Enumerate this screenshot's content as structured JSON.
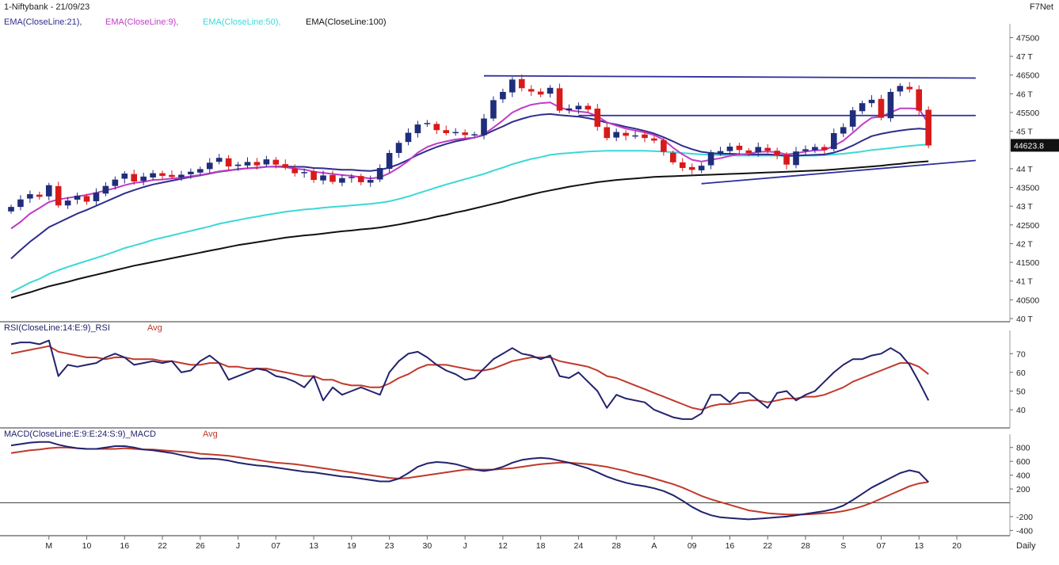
{
  "header": {
    "title": "1-Niftybank - 21/09/23",
    "vendor": "F7Net"
  },
  "colors": {
    "ema21": "#2e2e8c",
    "ema9": "#c03cc8",
    "ema50": "#3cd8d8",
    "ema100": "#111111",
    "rsi_line": "#22226e",
    "rsi_avg": "#c0392b",
    "macd_line": "#22226e",
    "macd_avg": "#c0392b",
    "candle_up": "#1f2d7a",
    "candle_down": "#d81a1a",
    "trendline": "#2b2f9a"
  },
  "chart_data": [
    {
      "type": "candlestick",
      "panel": "price",
      "legend": [
        {
          "label": "EMA(CloseLine:21),",
          "color_key": "ema21"
        },
        {
          "label": "EMA(CloseLine:9),",
          "color_key": "ema9"
        },
        {
          "label": "EMA(CloseLine:50),",
          "color_key": "ema50"
        },
        {
          "label": "EMA(CloseLine:100)",
          "color_key": "ema100"
        }
      ],
      "ylim": [
        40000,
        47700
      ],
      "y_ticks": [
        {
          "value": 47500,
          "label": "47500"
        },
        {
          "value": 47000,
          "label": "47 T"
        },
        {
          "value": 46500,
          "label": "46500"
        },
        {
          "value": 46000,
          "label": "46 T"
        },
        {
          "value": 45500,
          "label": "45500"
        },
        {
          "value": 45000,
          "label": "45 T"
        },
        {
          "value": 44000,
          "label": "44 T"
        },
        {
          "value": 43500,
          "label": "43500"
        },
        {
          "value": 43000,
          "label": "43 T"
        },
        {
          "value": 42500,
          "label": "42500"
        },
        {
          "value": 42000,
          "label": "42 T"
        },
        {
          "value": 41500,
          "label": "41500"
        },
        {
          "value": 41000,
          "label": "41 T"
        },
        {
          "value": 40500,
          "label": "40500"
        },
        {
          "value": 40000,
          "label": "40 T"
        }
      ],
      "last_price_label": "44623.8",
      "last_price": 44623.8,
      "close": [
        42980,
        43180,
        43320,
        43250,
        43560,
        43020,
        43150,
        43280,
        43120,
        43360,
        43540,
        43710,
        43870,
        43660,
        43790,
        43880,
        43810,
        43780,
        43840,
        43920,
        43990,
        44160,
        44290,
        44060,
        44110,
        44180,
        44090,
        44250,
        44110,
        44030,
        43880,
        43910,
        43700,
        43820,
        43650,
        43750,
        43780,
        43640,
        43700,
        44020,
        44420,
        44690,
        44960,
        45180,
        45220,
        45030,
        44950,
        44980,
        44900,
        44920,
        45340,
        45830,
        46050,
        46380,
        46150,
        46060,
        45980,
        46160,
        45550,
        45610,
        45680,
        45580,
        45120,
        44820,
        44980,
        44880,
        44890,
        44820,
        44750,
        44450,
        44170,
        44020,
        43970,
        44080,
        44440,
        44470,
        44590,
        44500,
        44420,
        44580,
        44480,
        44350,
        44110,
        44460,
        44520,
        44580,
        44500,
        44950,
        45110,
        45560,
        45750,
        45840,
        45360,
        46050,
        46210,
        46120,
        45550,
        44620
      ],
      "ema9": [
        42400,
        42580,
        42800,
        42950,
        43110,
        43180,
        43220,
        43260,
        43300,
        43360,
        43420,
        43480,
        43560,
        43620,
        43650,
        43700,
        43710,
        43740,
        43760,
        43800,
        43830,
        43880,
        43930,
        43960,
        43980,
        44010,
        44020,
        44050,
        44050,
        44040,
        44000,
        43980,
        43920,
        43890,
        43860,
        43830,
        43810,
        43770,
        43740,
        43770,
        43880,
        44030,
        44210,
        44430,
        44580,
        44670,
        44730,
        44780,
        44810,
        44830,
        44920,
        45100,
        45290,
        45500,
        45620,
        45710,
        45750,
        45770,
        45640,
        45560,
        45530,
        45500,
        45400,
        45240,
        45150,
        45070,
        45020,
        44970,
        44900,
        44770,
        44560,
        44380,
        44240,
        44190,
        44240,
        44280,
        44340,
        44380,
        44400,
        44450,
        44460,
        44440,
        44380,
        44410,
        44460,
        44490,
        44500,
        44610,
        44750,
        44960,
        45180,
        45360,
        45390,
        45500,
        45610,
        45610,
        45600,
        45200
      ],
      "ema21": [
        41600,
        41830,
        42050,
        42240,
        42440,
        42560,
        42680,
        42800,
        42900,
        43010,
        43120,
        43230,
        43340,
        43430,
        43510,
        43580,
        43630,
        43680,
        43730,
        43780,
        43820,
        43870,
        43920,
        43950,
        43990,
        44010,
        44030,
        44050,
        44060,
        44060,
        44050,
        44050,
        44020,
        44010,
        43990,
        43970,
        43970,
        43950,
        43940,
        43970,
        44030,
        44120,
        44240,
        44370,
        44480,
        44580,
        44660,
        44730,
        44780,
        44830,
        44900,
        45020,
        45130,
        45250,
        45330,
        45400,
        45440,
        45460,
        45430,
        45410,
        45390,
        45350,
        45300,
        45230,
        45180,
        45120,
        45070,
        45010,
        44940,
        44840,
        44730,
        44610,
        44520,
        44450,
        44420,
        44400,
        44400,
        44390,
        44380,
        44380,
        44380,
        44370,
        44340,
        44350,
        44360,
        44370,
        44380,
        44430,
        44510,
        44620,
        44750,
        44870,
        44930,
        44980,
        45020,
        45050,
        45070,
        45050
      ],
      "ema50": [
        40700,
        40830,
        40960,
        41060,
        41190,
        41290,
        41380,
        41460,
        41540,
        41620,
        41700,
        41790,
        41880,
        41950,
        42020,
        42100,
        42160,
        42220,
        42280,
        42340,
        42400,
        42460,
        42530,
        42580,
        42630,
        42680,
        42720,
        42770,
        42810,
        42850,
        42880,
        42910,
        42930,
        42960,
        42980,
        43000,
        43020,
        43040,
        43060,
        43090,
        43130,
        43190,
        43260,
        43340,
        43420,
        43500,
        43580,
        43650,
        43720,
        43790,
        43860,
        43950,
        44030,
        44120,
        44190,
        44260,
        44310,
        44370,
        44400,
        44420,
        44440,
        44460,
        44470,
        44480,
        44480,
        44480,
        44480,
        44480,
        44470,
        44460,
        44440,
        44420,
        44400,
        44380,
        44370,
        44360,
        44360,
        44350,
        44350,
        44350,
        44350,
        44350,
        44340,
        44340,
        44350,
        44350,
        44360,
        44380,
        44400,
        44430,
        44460,
        44500,
        44520,
        44550,
        44580,
        44610,
        44630,
        44650
      ],
      "ema100": [
        40550,
        40630,
        40700,
        40780,
        40860,
        40920,
        40980,
        41050,
        41110,
        41170,
        41230,
        41290,
        41350,
        41410,
        41460,
        41510,
        41560,
        41610,
        41660,
        41710,
        41760,
        41810,
        41860,
        41910,
        41960,
        42000,
        42040,
        42080,
        42120,
        42160,
        42190,
        42220,
        42240,
        42270,
        42300,
        42330,
        42350,
        42380,
        42400,
        42430,
        42470,
        42510,
        42560,
        42610,
        42660,
        42720,
        42770,
        42830,
        42880,
        42940,
        43000,
        43060,
        43120,
        43190,
        43250,
        43310,
        43370,
        43420,
        43470,
        43520,
        43560,
        43600,
        43640,
        43670,
        43700,
        43720,
        43740,
        43760,
        43780,
        43790,
        43800,
        43810,
        43820,
        43830,
        43840,
        43850,
        43860,
        43870,
        43880,
        43890,
        43900,
        43910,
        43920,
        43930,
        43940,
        43950,
        43960,
        43980,
        44000,
        44020,
        44040,
        44060,
        44080,
        44110,
        44130,
        44160,
        44180,
        44200
      ],
      "trendlines": [
        {
          "x1": 50,
          "y1": 46480,
          "x2": 102,
          "y2": 46420
        },
        {
          "x1": 60,
          "y1": 45420,
          "x2": 102,
          "y2": 45420
        },
        {
          "x1": 73,
          "y1": 43600,
          "x2": 102,
          "y2": 44220
        }
      ]
    },
    {
      "type": "line",
      "panel": "rsi",
      "legend": [
        {
          "label": "RSI(CloseLine:14:E:9)_RSI",
          "color_key": "rsi_line"
        },
        {
          "label": "Avg",
          "color_key": "rsi_avg"
        }
      ],
      "ylim": [
        32,
        79
      ],
      "y_ticks": [
        {
          "value": 70,
          "label": "70"
        },
        {
          "value": 60,
          "label": "60"
        },
        {
          "value": 50,
          "label": "50"
        },
        {
          "value": 40,
          "label": "40"
        }
      ],
      "series": [
        {
          "name": "RSI",
          "values": [
            75,
            76,
            76,
            75,
            77,
            58,
            64,
            63,
            64,
            65,
            68,
            70,
            68,
            64,
            65,
            66,
            65,
            66,
            60,
            61,
            66,
            69,
            65,
            56,
            58,
            60,
            62,
            61,
            58,
            57,
            55,
            52,
            58,
            45,
            52,
            48,
            50,
            52,
            50,
            48,
            60,
            66,
            70,
            71,
            68,
            64,
            61,
            59,
            56,
            57,
            62,
            67,
            70,
            73,
            70,
            69,
            67,
            69,
            58,
            57,
            60,
            55,
            50,
            41,
            48,
            46,
            45,
            44,
            40,
            38,
            36,
            35,
            35,
            38,
            48,
            48,
            44,
            49,
            49,
            45,
            41,
            49,
            50,
            45,
            48,
            50,
            55,
            60,
            64,
            67,
            67,
            69,
            70,
            73,
            70,
            64,
            55,
            45
          ]
        },
        {
          "name": "Avg",
          "values": [
            70,
            71,
            72,
            73,
            74,
            71,
            70,
            69,
            68,
            68,
            67,
            68,
            68,
            67,
            67,
            67,
            66,
            66,
            65,
            64,
            64,
            65,
            65,
            63,
            63,
            62,
            62,
            62,
            61,
            60,
            59,
            58,
            58,
            56,
            56,
            54,
            53,
            53,
            52,
            52,
            54,
            57,
            59,
            62,
            64,
            64,
            64,
            63,
            62,
            61,
            61,
            62,
            64,
            66,
            67,
            68,
            68,
            68,
            66,
            65,
            64,
            63,
            61,
            58,
            57,
            55,
            53,
            51,
            49,
            47,
            45,
            43,
            41,
            40,
            42,
            43,
            43,
            44,
            45,
            45,
            44,
            45,
            46,
            46,
            47,
            47,
            48,
            50,
            52,
            55,
            57,
            59,
            61,
            63,
            65,
            65,
            63,
            59
          ]
        }
      ]
    },
    {
      "type": "line",
      "panel": "macd",
      "legend": [
        {
          "label": "MACD(CloseLine:E:9:E:24:S:9)_MACD",
          "color_key": "macd_line"
        },
        {
          "label": "Avg",
          "color_key": "macd_avg"
        }
      ],
      "ylim": [
        -430,
        900
      ],
      "zero_line": 0,
      "y_ticks": [
        {
          "value": 800,
          "label": "800"
        },
        {
          "value": 600,
          "label": "600"
        },
        {
          "value": 400,
          "label": "400"
        },
        {
          "value": 200,
          "label": "200"
        },
        {
          "value": -200,
          "label": "-200"
        },
        {
          "value": -400,
          "label": "-400"
        }
      ],
      "series": [
        {
          "name": "MACD",
          "values": [
            830,
            850,
            870,
            880,
            880,
            840,
            810,
            790,
            780,
            780,
            800,
            820,
            820,
            800,
            770,
            760,
            740,
            720,
            690,
            660,
            640,
            640,
            630,
            610,
            580,
            560,
            540,
            530,
            510,
            490,
            470,
            450,
            440,
            420,
            400,
            380,
            370,
            350,
            330,
            310,
            310,
            350,
            430,
            520,
            570,
            590,
            580,
            560,
            520,
            480,
            460,
            480,
            520,
            580,
            620,
            640,
            650,
            640,
            610,
            580,
            540,
            500,
            440,
            380,
            330,
            290,
            260,
            240,
            210,
            170,
            110,
            30,
            -60,
            -130,
            -180,
            -210,
            -220,
            -230,
            -240,
            -230,
            -220,
            -210,
            -200,
            -180,
            -160,
            -140,
            -120,
            -90,
            -40,
            40,
            130,
            220,
            290,
            360,
            430,
            470,
            440,
            300
          ]
        },
        {
          "name": "Avg",
          "values": [
            720,
            740,
            760,
            770,
            790,
            800,
            800,
            790,
            780,
            780,
            780,
            780,
            790,
            780,
            770,
            770,
            760,
            750,
            740,
            730,
            710,
            700,
            690,
            680,
            660,
            640,
            620,
            600,
            580,
            570,
            560,
            540,
            520,
            500,
            480,
            460,
            440,
            420,
            400,
            380,
            360,
            350,
            360,
            380,
            400,
            420,
            440,
            460,
            480,
            480,
            480,
            480,
            490,
            500,
            520,
            540,
            560,
            570,
            580,
            580,
            570,
            560,
            540,
            520,
            490,
            460,
            420,
            390,
            350,
            310,
            270,
            220,
            160,
            100,
            50,
            10,
            -30,
            -70,
            -110,
            -130,
            -150,
            -160,
            -170,
            -170,
            -170,
            -160,
            -150,
            -140,
            -120,
            -90,
            -50,
            0,
            60,
            120,
            180,
            240,
            280,
            300
          ]
        }
      ]
    }
  ],
  "x_axis": {
    "labels": [
      {
        "index": 4,
        "label": "M"
      },
      {
        "index": 8,
        "label": "10"
      },
      {
        "index": 12,
        "label": "16"
      },
      {
        "index": 16,
        "label": "22"
      },
      {
        "index": 20,
        "label": "26"
      },
      {
        "index": 24,
        "label": "J"
      },
      {
        "index": 28,
        "label": "07"
      },
      {
        "index": 32,
        "label": "13"
      },
      {
        "index": 36,
        "label": "19"
      },
      {
        "index": 40,
        "label": "23"
      },
      {
        "index": 44,
        "label": "30"
      },
      {
        "index": 48,
        "label": "J"
      },
      {
        "index": 52,
        "label": "12"
      },
      {
        "index": 56,
        "label": "18"
      },
      {
        "index": 60,
        "label": "24"
      },
      {
        "index": 64,
        "label": "28"
      },
      {
        "index": 68,
        "label": "A"
      },
      {
        "index": 72,
        "label": "09"
      },
      {
        "index": 76,
        "label": "16"
      },
      {
        "index": 80,
        "label": "22"
      },
      {
        "index": 84,
        "label": "28"
      },
      {
        "index": 88,
        "label": "S"
      },
      {
        "index": 92,
        "label": "07"
      },
      {
        "index": 96,
        "label": "13"
      },
      {
        "index": 100,
        "label": "20"
      }
    ],
    "period_label": "Daily"
  }
}
